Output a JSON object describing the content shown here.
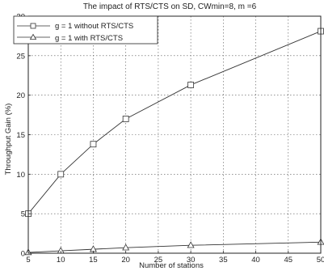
{
  "chart_data": {
    "type": "line",
    "title": "The impact of RTS/CTS on SD, CWmin=8, m =6",
    "xlabel": "Number of stations",
    "ylabel": "Throughput Gain (%)",
    "xlim": [
      5,
      50
    ],
    "ylim": [
      0,
      30
    ],
    "x_ticks": [
      5,
      10,
      15,
      20,
      25,
      30,
      35,
      40,
      45,
      50
    ],
    "y_ticks": [
      0,
      5,
      10,
      15,
      20,
      25,
      30
    ],
    "grid": true,
    "legend_position": "top-left",
    "series": [
      {
        "name": "g = 1   without RTS/CTS",
        "marker": "square",
        "x": [
          5,
          10,
          15,
          20,
          30,
          50
        ],
        "y": [
          5.0,
          10.0,
          13.8,
          17.0,
          21.3,
          28.1
        ]
      },
      {
        "name": "g = 1   with RTS/CTS",
        "marker": "triangle",
        "x": [
          5,
          10,
          15,
          20,
          30,
          50
        ],
        "y": [
          0.1,
          0.3,
          0.5,
          0.7,
          1.0,
          1.4
        ]
      }
    ]
  }
}
